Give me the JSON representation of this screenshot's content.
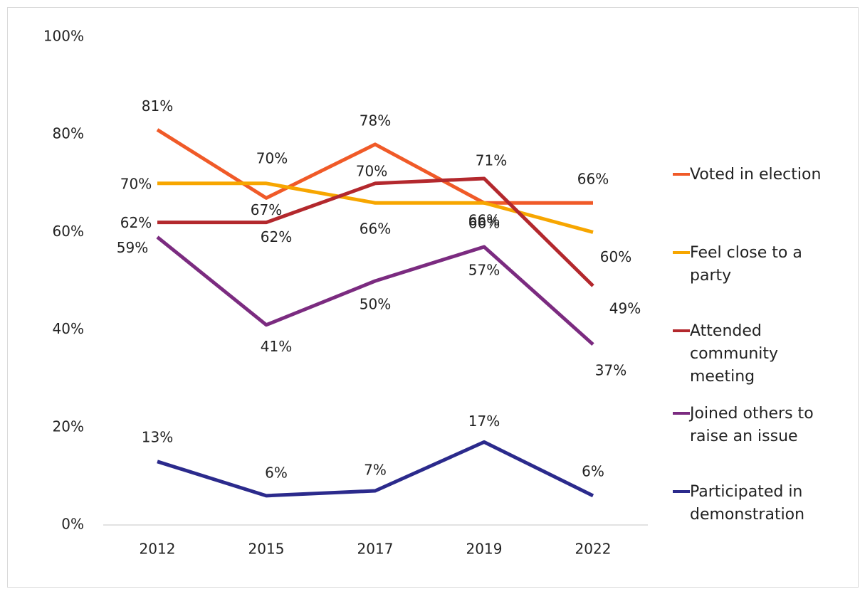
{
  "chart_data": {
    "type": "line",
    "categories": [
      "2012",
      "2015",
      "2017",
      "2019",
      "2022"
    ],
    "series": [
      {
        "name": "Voted in election",
        "color": "#f05a28",
        "values": [
          81,
          67,
          78,
          66,
          66
        ],
        "value_labels": [
          "81%",
          "67%",
          "78%",
          "66%",
          "66%"
        ]
      },
      {
        "name": "Feel close to a party",
        "color": "#f7a600",
        "values": [
          70,
          70,
          66,
          66,
          60
        ],
        "value_labels": [
          "70%",
          "70%",
          "66%",
          "66%",
          "60%"
        ]
      },
      {
        "name": "Attended community meeting",
        "color": "#b3282d",
        "values": [
          62,
          62,
          70,
          71,
          49
        ],
        "value_labels": [
          "62%",
          "62%",
          "70%",
          "71%",
          "49%"
        ]
      },
      {
        "name": "Joined others to raise an issue",
        "color": "#7b2b80",
        "values": [
          59,
          41,
          50,
          57,
          37
        ],
        "value_labels": [
          "59%",
          "41%",
          "50%",
          "57%",
          "37%"
        ]
      },
      {
        "name": "Participated in demonstration",
        "color": "#2b2a8c",
        "values": [
          13,
          6,
          7,
          17,
          6
        ],
        "value_labels": [
          "13%",
          "6%",
          "7%",
          "17%",
          "6%"
        ]
      }
    ],
    "ylim": [
      0,
      100
    ],
    "yticks": [
      {
        "value": 0,
        "label": "0%"
      },
      {
        "value": 20,
        "label": "20%"
      },
      {
        "value": 40,
        "label": "40%"
      },
      {
        "value": 60,
        "label": "60%"
      },
      {
        "value": 80,
        "label": "80%"
      },
      {
        "value": 100,
        "label": "100%"
      }
    ],
    "grid": false,
    "legend": "right"
  }
}
